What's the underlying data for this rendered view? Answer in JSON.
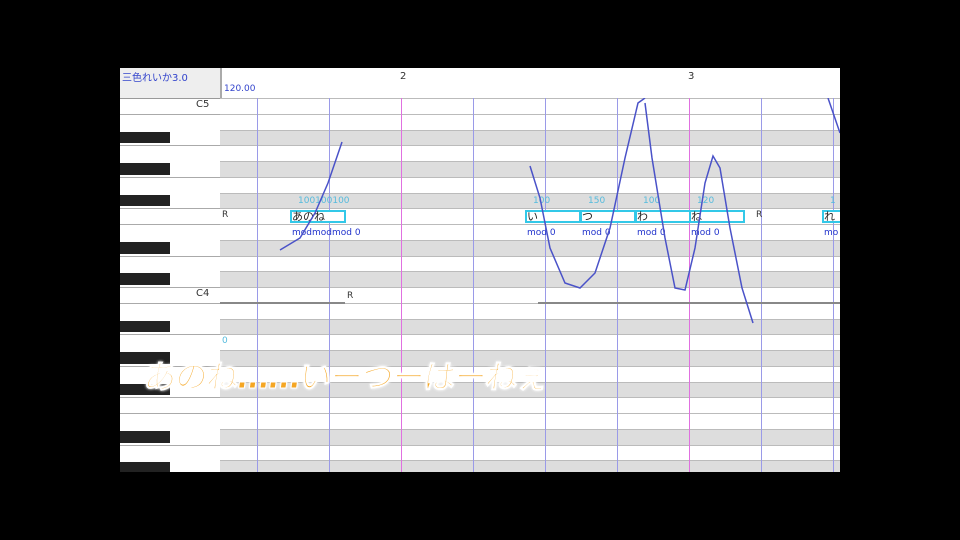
{
  "title": "三色れいか3.0",
  "tempo": "120.00",
  "measures": [
    "2",
    "3"
  ],
  "octave_labels": {
    "c5": "C5",
    "c4": "C4"
  },
  "rest": "R",
  "notes": [
    {
      "lyric": "あのね",
      "vel": "100100100",
      "mod": "modmodmod 0"
    },
    {
      "lyric": "い",
      "vel": "100",
      "mod": "mod 0"
    },
    {
      "lyric": "つ",
      "vel": "150",
      "mod": "mod 0"
    },
    {
      "lyric": "わ",
      "vel": "100",
      "mod": "mod 0"
    },
    {
      "lyric": "ね",
      "vel": "120",
      "mod": "mod 0"
    },
    {
      "lyric": "れ",
      "vel": "1",
      "mod": "mo"
    }
  ],
  "lower_marker": "0",
  "subtitle": "あのね……いーつーはーねぇ",
  "colors": {
    "pitch": "#4a52c8",
    "note": "#33c8e8",
    "beat": "#9a9ae8",
    "measure": "#e070e0"
  }
}
